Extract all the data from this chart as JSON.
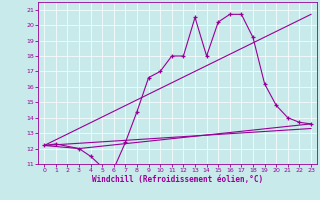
{
  "xlabel": "Windchill (Refroidissement éolien,°C)",
  "bg_color": "#c8eaea",
  "line_color": "#990099",
  "xlim": [
    -0.5,
    23.5
  ],
  "ylim": [
    11,
    21.5
  ],
  "xticks": [
    0,
    1,
    2,
    3,
    4,
    5,
    6,
    7,
    8,
    9,
    10,
    11,
    12,
    13,
    14,
    15,
    16,
    17,
    18,
    19,
    20,
    21,
    22,
    23
  ],
  "yticks": [
    11,
    12,
    13,
    14,
    15,
    16,
    17,
    18,
    19,
    20,
    21
  ],
  "line1_x": [
    0,
    1,
    3,
    4,
    5,
    6,
    7,
    8,
    9,
    10,
    11,
    12,
    13,
    14,
    15,
    16,
    17,
    18,
    19,
    20,
    21,
    22,
    23
  ],
  "line1_y": [
    12.2,
    12.3,
    12.0,
    11.5,
    10.8,
    10.7,
    12.4,
    14.4,
    16.6,
    17.0,
    18.0,
    18.0,
    20.5,
    18.0,
    20.2,
    20.7,
    20.7,
    19.2,
    16.2,
    14.8,
    14.0,
    13.7,
    13.6
  ],
  "line2_x": [
    0,
    3,
    23
  ],
  "line2_y": [
    12.2,
    12.0,
    13.6
  ],
  "line3_x": [
    0,
    23
  ],
  "line3_y": [
    12.2,
    20.7
  ],
  "line4_x": [
    0,
    23
  ],
  "line4_y": [
    12.2,
    13.3
  ],
  "tick_fontsize": 4.5,
  "xlabel_fontsize": 5.5,
  "linewidth": 0.8,
  "marker_size": 3,
  "grid_color": "#ffffff",
  "grid_lw": 0.5
}
